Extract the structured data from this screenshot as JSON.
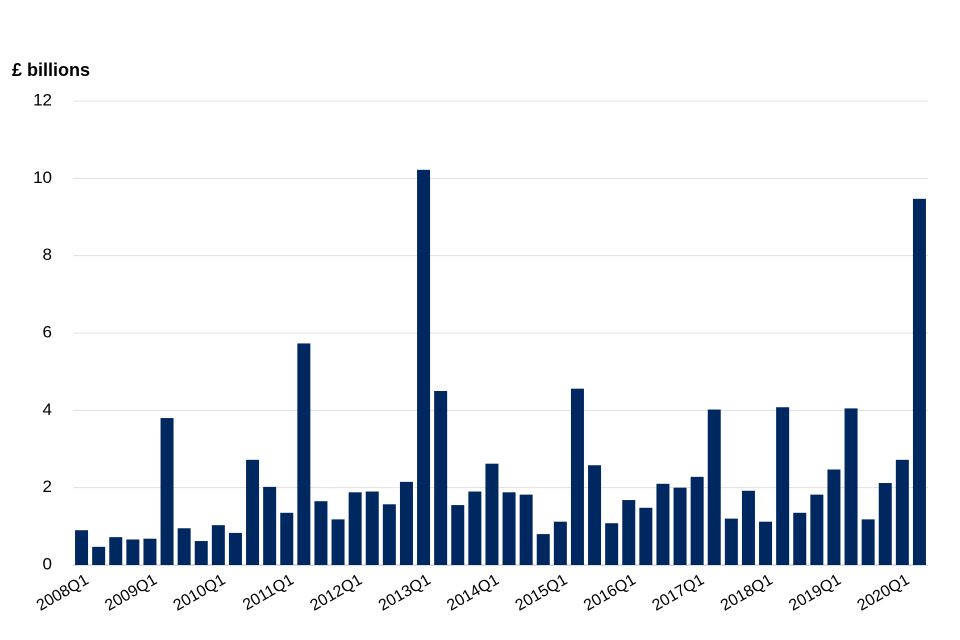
{
  "chart_data": {
    "type": "bar",
    "ylabel": "£ billions",
    "categories": [
      "2008Q1",
      null,
      null,
      null,
      "2009Q1",
      null,
      null,
      null,
      "2010Q1",
      null,
      null,
      null,
      "2011Q1",
      null,
      null,
      null,
      "2012Q1",
      null,
      null,
      null,
      "2013Q1",
      null,
      null,
      null,
      "2014Q1",
      null,
      null,
      null,
      "2015Q1",
      null,
      null,
      null,
      "2016Q1",
      null,
      null,
      null,
      "2017Q1",
      null,
      null,
      null,
      "2018Q1",
      null,
      null,
      null,
      "2019Q1",
      null,
      null,
      null,
      "2020Q1",
      null
    ],
    "values": [
      0.9,
      0.47,
      0.72,
      0.66,
      0.68,
      3.8,
      0.95,
      0.62,
      1.03,
      0.83,
      2.72,
      2.02,
      1.35,
      5.73,
      1.65,
      1.18,
      1.88,
      1.9,
      1.57,
      2.15,
      10.22,
      4.5,
      1.55,
      1.9,
      2.62,
      1.88,
      1.82,
      0.8,
      1.12,
      4.56,
      2.58,
      1.08,
      1.68,
      1.48,
      2.1,
      2.0,
      2.28,
      4.02,
      1.2,
      1.92,
      1.12,
      4.08,
      1.35,
      1.82,
      2.47,
      4.05,
      1.18,
      2.12,
      2.72,
      9.47
    ],
    "color": "#002860",
    "ylim": [
      0,
      12
    ],
    "yticks": [
      0,
      2,
      4,
      6,
      8,
      10,
      12
    ],
    "grid": true
  }
}
